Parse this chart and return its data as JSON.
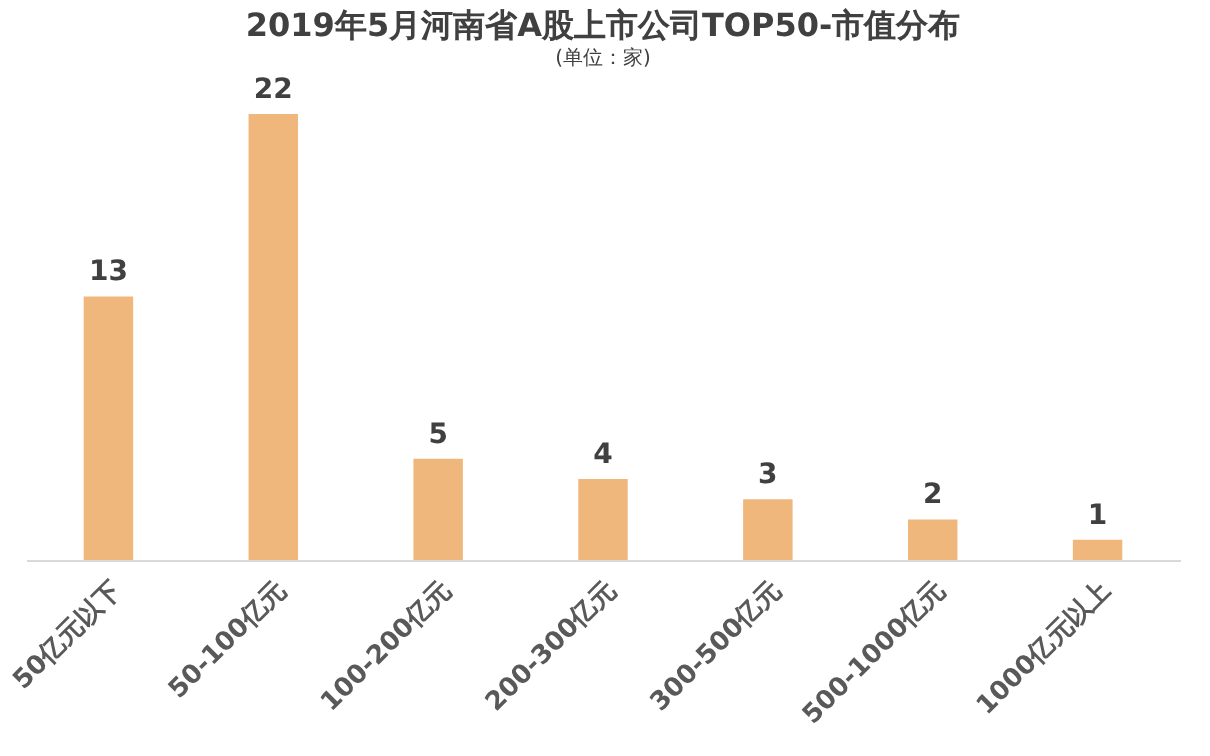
{
  "chart_data": {
    "type": "bar",
    "title": "2019年5月河南省A股上市公司TOP50-市值分布",
    "subtitle": "(单位：家)",
    "categories": [
      "50亿元以下",
      "50-100亿元",
      "100-200亿元",
      "200-300亿元",
      "300-500亿元",
      "500-1000亿元",
      "1000亿元以上"
    ],
    "values": [
      13,
      22,
      5,
      4,
      3,
      2,
      1
    ],
    "color": "#f0b77c",
    "data_labels": true,
    "grid": false
  }
}
